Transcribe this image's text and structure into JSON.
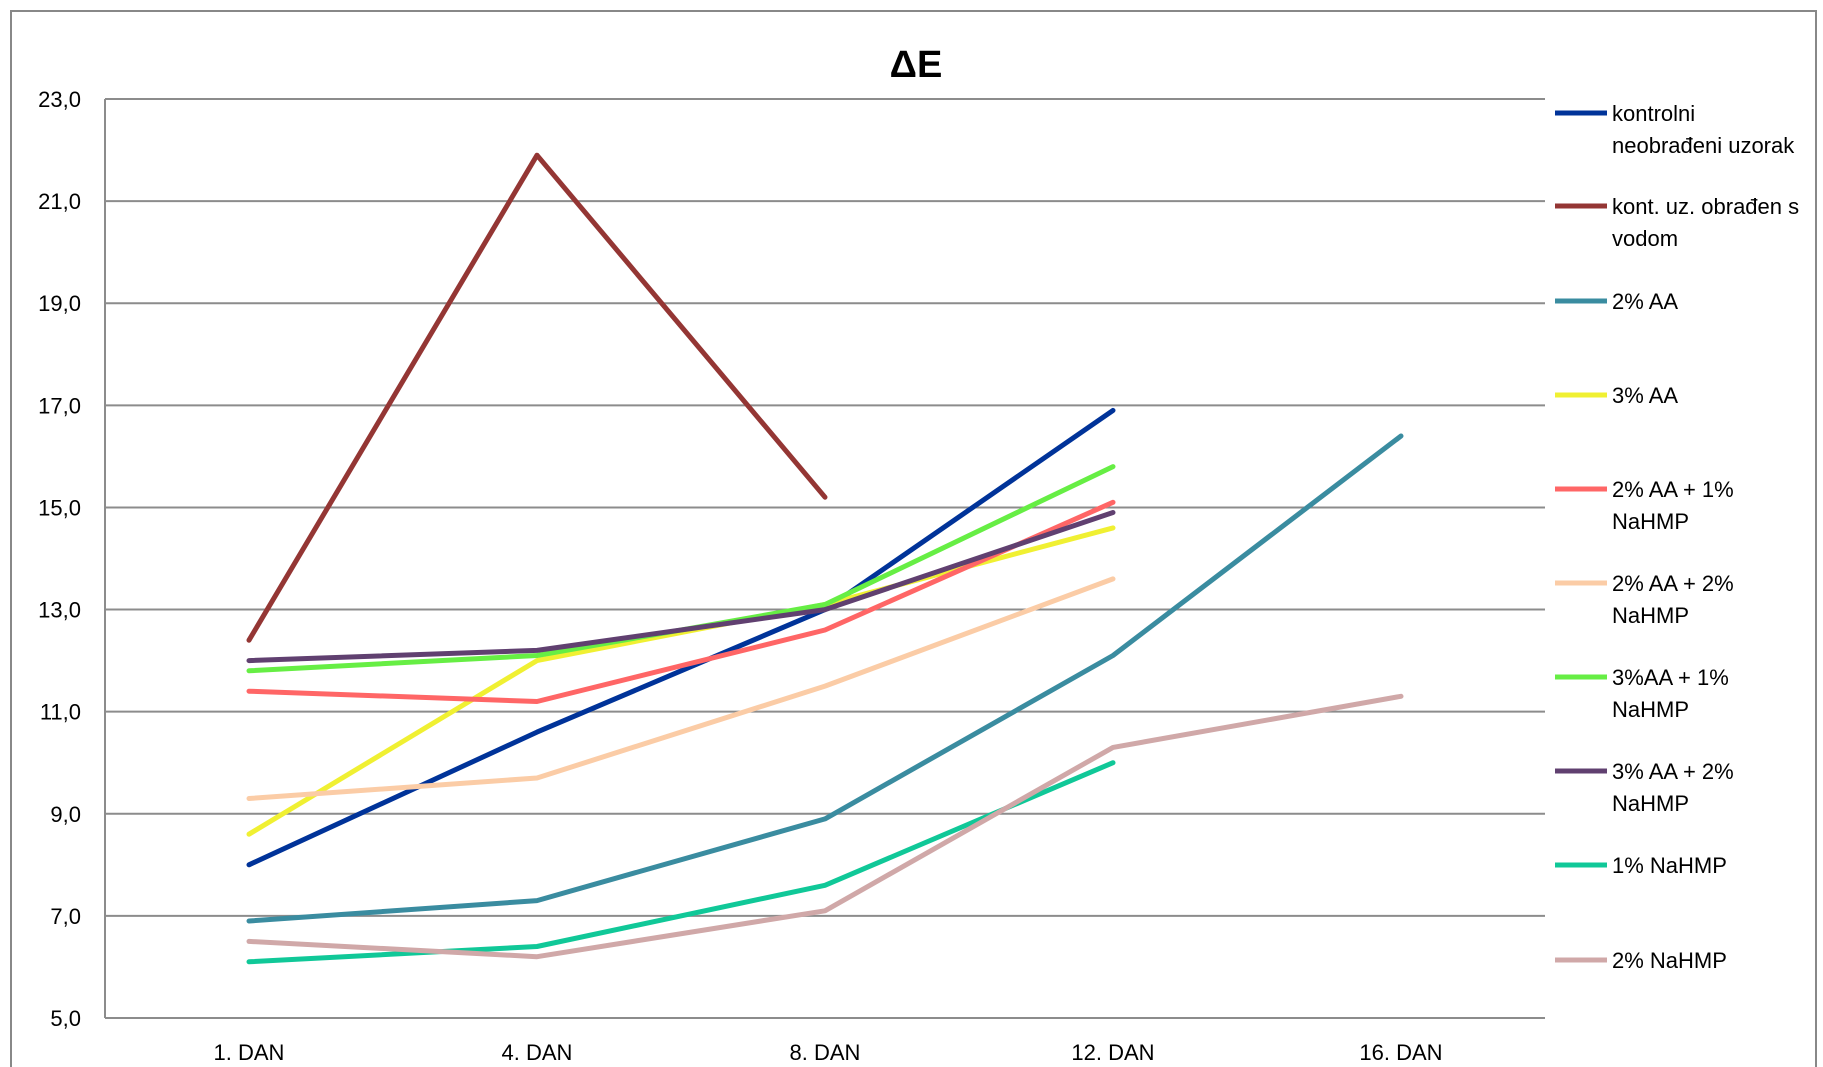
{
  "chart_data": {
    "type": "line",
    "title": "ΔE",
    "xlabel": "",
    "ylabel": "",
    "categories": [
      "1. DAN",
      "4. DAN",
      "8. DAN",
      "12. DAN",
      "16. DAN"
    ],
    "ylim": [
      5,
      23
    ],
    "yticks": [
      5,
      7,
      9,
      11,
      13,
      15,
      17,
      19,
      21,
      23
    ],
    "ytick_labels": [
      "5,0",
      "7,0",
      "9,0",
      "11,0",
      "13,0",
      "15,0",
      "17,0",
      "19,0",
      "21,0",
      "23,0"
    ],
    "grid": true,
    "legend_position": "right",
    "series": [
      {
        "name_lines": [
          "kontrolni",
          "neobrađeni uzorak"
        ],
        "color": "#003399",
        "values": [
          8.0,
          10.6,
          13.0,
          16.9,
          null
        ]
      },
      {
        "name_lines": [
          "kont. uz. obrađen s",
          "vodom"
        ],
        "color": "#943634",
        "values": [
          12.4,
          21.9,
          15.2,
          null,
          null
        ]
      },
      {
        "name_lines": [
          "2% AA"
        ],
        "color": "#3A8CA0",
        "values": [
          6.9,
          7.3,
          8.9,
          12.1,
          16.4
        ]
      },
      {
        "name_lines": [
          "3% AA"
        ],
        "color": "#F0F032",
        "values": [
          8.6,
          12.0,
          13.1,
          14.6,
          null
        ]
      },
      {
        "name_lines": [
          "2% AA + 1%",
          "NaHMP"
        ],
        "color": "#FF6666",
        "values": [
          11.4,
          11.2,
          12.6,
          15.1,
          null
        ]
      },
      {
        "name_lines": [
          "2% AA + 2%",
          "NaHMP"
        ],
        "color": "#FBCCA6",
        "values": [
          9.3,
          9.7,
          11.5,
          13.6,
          null
        ]
      },
      {
        "name_lines": [
          "3%AA + 1%",
          "NaHMP"
        ],
        "color": "#66EE44",
        "values": [
          11.8,
          12.1,
          13.1,
          15.8,
          null
        ]
      },
      {
        "name_lines": [
          "3% AA + 2%",
          "NaHMP"
        ],
        "color": "#604070",
        "values": [
          12.0,
          12.2,
          13.0,
          14.9,
          null
        ]
      },
      {
        "name_lines": [
          "1% NaHMP"
        ],
        "color": "#10C898",
        "values": [
          6.1,
          6.4,
          7.6,
          10.0,
          null
        ]
      },
      {
        "name_lines": [
          "2% NaHMP"
        ],
        "color": "#D0A8A8",
        "values": [
          6.5,
          6.2,
          7.1,
          10.3,
          11.3
        ]
      }
    ]
  }
}
